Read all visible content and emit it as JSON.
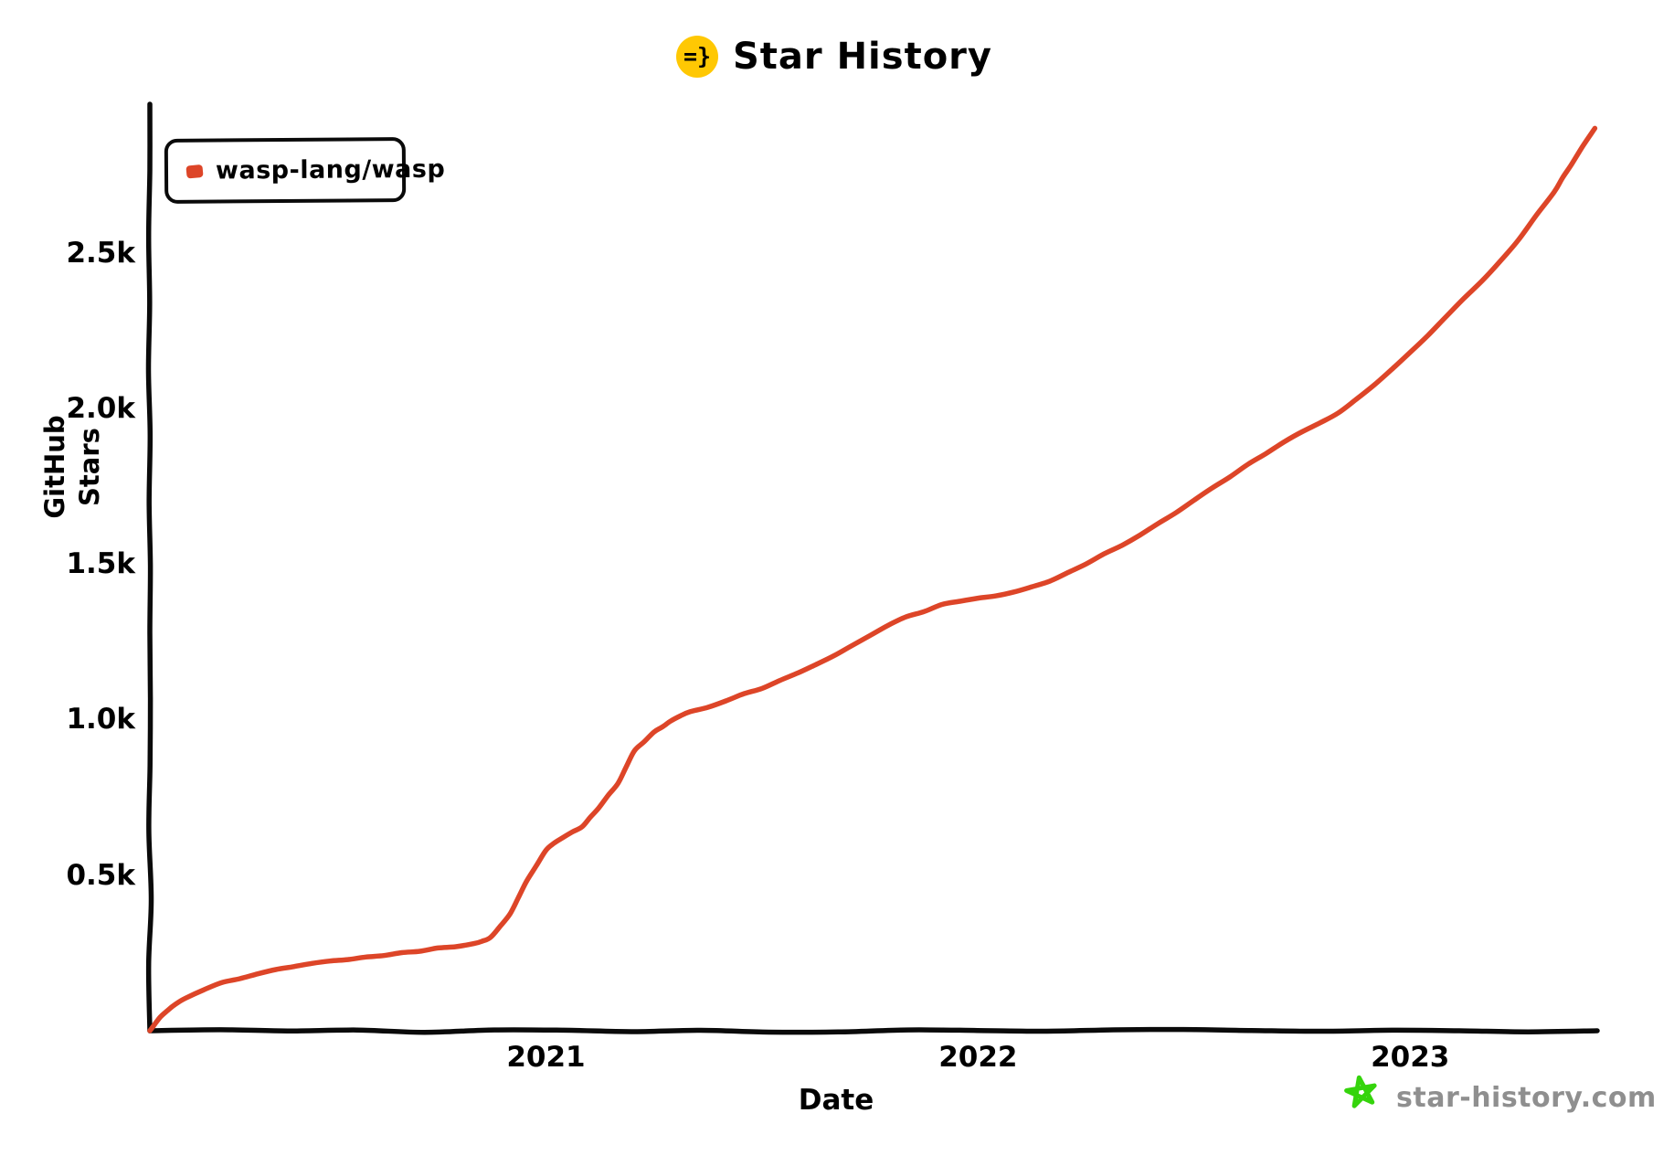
{
  "header": {
    "logo_glyph": "=}",
    "title": "Star History"
  },
  "legend": {
    "series_label": "wasp-lang/wasp"
  },
  "y_axis": {
    "label": "GitHub Stars"
  },
  "x_axis": {
    "label": "Date"
  },
  "watermark": {
    "site": "star-history.com"
  },
  "colors": {
    "series_red": "#dd4528",
    "logo_yellow": "#ffc803",
    "watermark_green": "#35d40c",
    "watermark_gray": "#8f8f8f",
    "ink_black": "#0a0a0a"
  },
  "chart_data": {
    "type": "line",
    "title": "Star History",
    "xlabel": "Date",
    "ylabel": "GitHub Stars",
    "grid": false,
    "legend_position": "top-left",
    "x_range": [
      "2020-02-01",
      "2023-06-07"
    ],
    "y_range": [
      0,
      2960
    ],
    "y_tick_values": [
      500,
      1000,
      1500,
      2000,
      2500
    ],
    "y_tick_labels": [
      "0.5k",
      "1.0k",
      "1.5k",
      "2.0k",
      "2.5k"
    ],
    "x_tick_dates": [
      "2021-01-01",
      "2022-01-01",
      "2023-01-01"
    ],
    "x_tick_labels": [
      "2021",
      "2022",
      "2023"
    ],
    "series": [
      {
        "name": "wasp-lang/wasp",
        "color": "#dd4528",
        "points": [
          [
            "2020-02-01",
            0
          ],
          [
            "2020-02-10",
            45
          ],
          [
            "2020-02-20",
            78
          ],
          [
            "2020-03-01",
            105
          ],
          [
            "2020-04-01",
            155
          ],
          [
            "2020-05-01",
            183
          ],
          [
            "2020-06-01",
            206
          ],
          [
            "2020-07-01",
            224
          ],
          [
            "2020-08-01",
            237
          ],
          [
            "2020-09-01",
            251
          ],
          [
            "2020-10-01",
            266
          ],
          [
            "2020-11-01",
            280
          ],
          [
            "2020-11-15",
            300
          ],
          [
            "2020-12-01",
            375
          ],
          [
            "2020-12-15",
            480
          ],
          [
            "2021-01-01",
            580
          ],
          [
            "2021-01-15",
            620
          ],
          [
            "2021-02-01",
            655
          ],
          [
            "2021-02-15",
            715
          ],
          [
            "2021-03-01",
            795
          ],
          [
            "2021-03-15",
            900
          ],
          [
            "2021-04-01",
            960
          ],
          [
            "2021-04-15",
            995
          ],
          [
            "2021-05-01",
            1025
          ],
          [
            "2021-06-01",
            1060
          ],
          [
            "2021-07-01",
            1100
          ],
          [
            "2021-08-01",
            1150
          ],
          [
            "2021-09-01",
            1205
          ],
          [
            "2021-10-01",
            1270
          ],
          [
            "2021-11-01",
            1330
          ],
          [
            "2021-12-01",
            1370
          ],
          [
            "2022-01-01",
            1390
          ],
          [
            "2022-02-01",
            1410
          ],
          [
            "2022-03-01",
            1445
          ],
          [
            "2022-04-01",
            1500
          ],
          [
            "2022-05-01",
            1560
          ],
          [
            "2022-06-01",
            1630
          ],
          [
            "2022-07-01",
            1705
          ],
          [
            "2022-08-01",
            1780
          ],
          [
            "2022-09-01",
            1855
          ],
          [
            "2022-10-01",
            1925
          ],
          [
            "2022-11-01",
            1985
          ],
          [
            "2022-12-01",
            2075
          ],
          [
            "2023-01-01",
            2180
          ],
          [
            "2023-02-01",
            2295
          ],
          [
            "2023-03-01",
            2410
          ],
          [
            "2023-04-01",
            2540
          ],
          [
            "2023-05-01",
            2695
          ],
          [
            "2023-05-15",
            2780
          ],
          [
            "2023-06-05",
            2900
          ]
        ]
      }
    ]
  }
}
